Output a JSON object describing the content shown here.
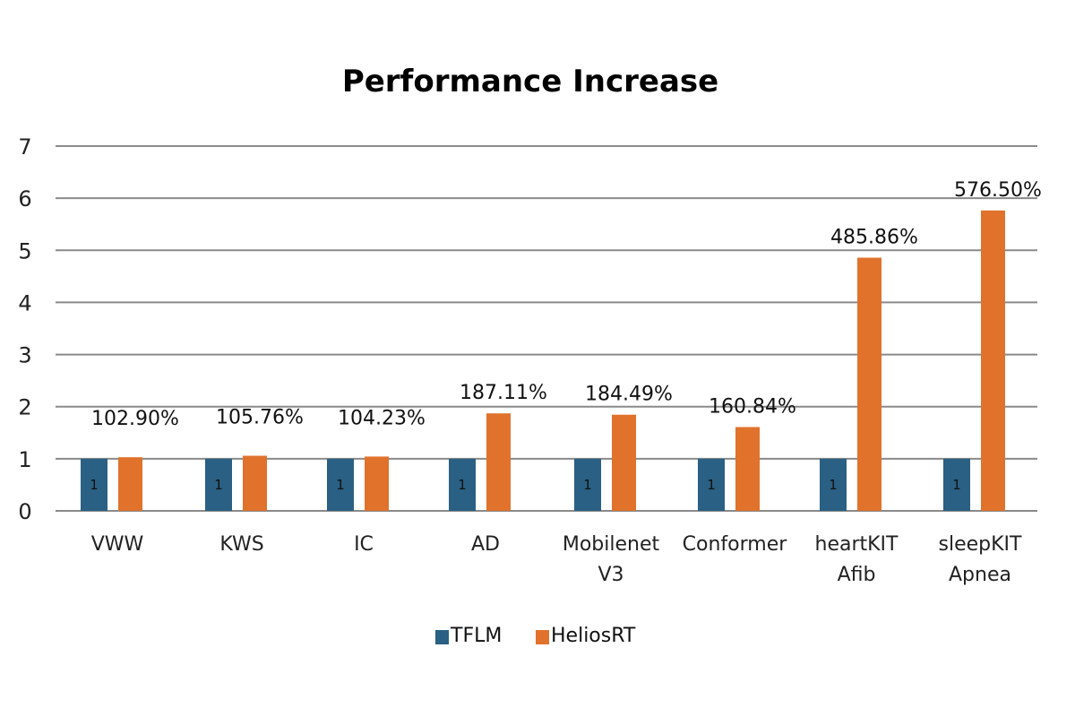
{
  "chart_data": {
    "type": "bar",
    "title": "Performance Increase",
    "xlabel": "",
    "ylabel": "",
    "ylim": [
      0,
      7
    ],
    "yticks": [
      "0",
      "1",
      "2",
      "3",
      "4",
      "5",
      "6",
      "7"
    ],
    "grid": true,
    "legend_position": "bottom",
    "categories": [
      [
        "VWW"
      ],
      [
        "KWS"
      ],
      [
        "IC"
      ],
      [
        "AD"
      ],
      [
        "Mobilenet",
        "V3"
      ],
      [
        "Conformer"
      ],
      [
        "heartKIT",
        "Afib"
      ],
      [
        "sleepKIT",
        "Apnea"
      ]
    ],
    "series": [
      {
        "name": "TFLM",
        "color": "#2a6083",
        "values": [
          1,
          1,
          1,
          1,
          1,
          1,
          1,
          1
        ],
        "data_labels": [
          "1",
          "1",
          "1",
          "1",
          "1",
          "1",
          "1",
          "1"
        ]
      },
      {
        "name": "HeliosRT",
        "color": "#e0722c",
        "values": [
          1.029,
          1.0576,
          1.0423,
          1.8711,
          1.8449,
          1.6084,
          4.8586,
          5.765
        ],
        "data_labels": [
          "102.90%",
          "105.76%",
          "104.23%",
          "187.11%",
          "184.49%",
          "160.84%",
          "485.86%",
          "576.50%"
        ]
      }
    ]
  }
}
